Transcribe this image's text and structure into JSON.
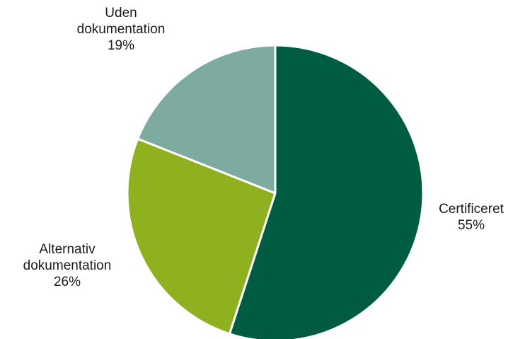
{
  "chart_data": {
    "type": "pie",
    "title": "",
    "start_angle_deg": 0,
    "direction": "clockwise",
    "slices": [
      {
        "label": "Certificeret",
        "label_lines": [
          "Certificeret"
        ],
        "value": 55,
        "value_label": "55%",
        "color": "#005c40"
      },
      {
        "label": "Alternativ dokumentation",
        "label_lines": [
          "Alternativ",
          "dokumentation"
        ],
        "value": 26,
        "value_label": "26%",
        "color": "#8fb120"
      },
      {
        "label": "Uden dokumentation",
        "label_lines": [
          "Uden",
          "dokumentation"
        ],
        "value": 19,
        "value_label": "19%",
        "color": "#7dab9f"
      }
    ],
    "legend": "none",
    "labels_position": "outside"
  }
}
